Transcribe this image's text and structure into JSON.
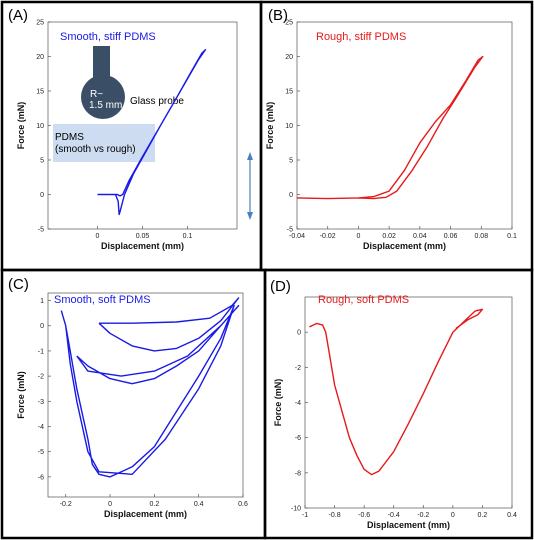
{
  "chart_data": [
    {
      "type": "line",
      "panel_label": "(A)",
      "caption": "Smooth, stiff PDMS",
      "color": "#1a1ae6",
      "xlabel": "Displacement (mm)",
      "ylabel": "Force (mN)",
      "xlim": [
        -0.055,
        0.155
      ],
      "ylim": [
        -5,
        25
      ],
      "xticks": [
        0,
        0.05,
        0.1
      ],
      "xticklabels": [
        "0",
        "0.05",
        "0.1"
      ],
      "yticks": [
        -5,
        0,
        5,
        10,
        15,
        20,
        25
      ],
      "yticklabels": [
        "-5",
        "0",
        "5",
        "10",
        "15",
        "20",
        "25"
      ],
      "series": [
        {
          "x": [
            0,
            0.015,
            0.022,
            0.025,
            0.028,
            0.035,
            0.05,
            0.07,
            0.09,
            0.105,
            0.116,
            0.12,
            0.112,
            0.09,
            0.07,
            0.055,
            0.04,
            0.03,
            0.027,
            0.025,
            0.024,
            0.023,
            0.02,
            0.01,
            0
          ],
          "y": [
            0,
            0,
            0,
            -0.2,
            0,
            2,
            5.5,
            10,
            14.5,
            18,
            20.5,
            21,
            19.5,
            14.5,
            10,
            6.5,
            3,
            0,
            -1.5,
            -2.5,
            -2.9,
            -1,
            0,
            0,
            0
          ]
        }
      ],
      "annotations": {
        "probe_size": "R~\n1.5 mm",
        "probe_label": "Glass probe",
        "substrate_label": "PDMS\n(smooth vs rough)"
      }
    },
    {
      "type": "line",
      "panel_label": "(B)",
      "caption": "Rough, stiff PDMS",
      "color": "#e61a1a",
      "xlabel": "Displacement (mm)",
      "ylabel": "Force (mN)",
      "xlim": [
        -0.04,
        0.1
      ],
      "ylim": [
        -5,
        25
      ],
      "xticks": [
        -0.04,
        -0.02,
        0,
        0.02,
        0.04,
        0.06,
        0.08,
        0.1
      ],
      "xticklabels": [
        "-0.04",
        "-0.02",
        "0",
        "0.02",
        "0.04",
        "0.06",
        "0.08",
        "0.1"
      ],
      "yticks": [
        -5,
        0,
        5,
        10,
        15,
        20,
        25
      ],
      "yticklabels": [
        "-5",
        "0",
        "5",
        "10",
        "15",
        "20",
        "25"
      ],
      "series": [
        {
          "x": [
            -0.04,
            -0.02,
            0,
            0.01,
            0.02,
            0.03,
            0.04,
            0.05,
            0.06,
            0.07,
            0.078,
            0.081,
            0.076,
            0.065,
            0.055,
            0.045,
            0.035,
            0.025,
            0.018,
            0.01,
            0,
            -0.02,
            -0.04
          ],
          "y": [
            -0.5,
            -0.6,
            -0.5,
            -0.3,
            0.5,
            3.5,
            7.5,
            10.5,
            13,
            16.5,
            19.5,
            20,
            18.5,
            14.5,
            11,
            7,
            3.5,
            0.5,
            -0.4,
            -0.6,
            -0.5,
            -0.6,
            -0.5
          ]
        }
      ]
    },
    {
      "type": "line",
      "panel_label": "(C)",
      "caption": "Smooth, soft PDMS",
      "color": "#1a1ae6",
      "xlabel": "Displacement (mm)",
      "ylabel": "Force (mN)",
      "xlim": [
        -0.28,
        0.6
      ],
      "ylim": [
        -6.8,
        1.3
      ],
      "xticks": [
        -0.2,
        0,
        0.2,
        0.4,
        0.6
      ],
      "xticklabels": [
        "-0.2",
        "0",
        "0.2",
        "0.4",
        "0.6"
      ],
      "yticks": [
        -6,
        -5,
        -4,
        -3,
        -2,
        -1,
        0,
        1
      ],
      "yticklabels": [
        "-6",
        "-5",
        "-4",
        "-3",
        "-2",
        "-1",
        "0",
        "1"
      ],
      "series": [
        {
          "x": [
            -0.05,
            0.1,
            0.3,
            0.45,
            0.55,
            0.58,
            0.5,
            0.4,
            0.3,
            0.2,
            0.1,
            0.0,
            -0.05
          ],
          "y": [
            0.1,
            0.1,
            0.15,
            0.3,
            0.8,
            1.1,
            0.2,
            -0.5,
            -0.9,
            -1.0,
            -0.8,
            -0.3,
            0.1
          ]
        },
        {
          "x": [
            -0.15,
            -0.1,
            0.05,
            0.2,
            0.35,
            0.5,
            0.58,
            0.5,
            0.4,
            0.3,
            0.2,
            0.1,
            0.0,
            -0.1,
            -0.15
          ],
          "y": [
            -1.2,
            -1.8,
            -2.0,
            -1.8,
            -1.2,
            0.0,
            0.8,
            0.0,
            -1.0,
            -1.6,
            -2.1,
            -2.3,
            -2.1,
            -1.6,
            -1.2
          ]
        },
        {
          "x": [
            -0.22,
            -0.2,
            -0.18,
            -0.15,
            -0.1,
            -0.05,
            0.1,
            0.25,
            0.4,
            0.5,
            0.56,
            0.5,
            0.4,
            0.3,
            0.2,
            0.1,
            0.0,
            -0.05,
            -0.08,
            -0.1,
            -0.15,
            -0.18,
            -0.2,
            -0.22
          ],
          "y": [
            0.6,
            0.0,
            -1.5,
            -3.0,
            -5.0,
            -5.8,
            -5.9,
            -4.5,
            -2.5,
            -0.8,
            0.8,
            -0.5,
            -2.0,
            -3.4,
            -4.8,
            -5.6,
            -6.0,
            -5.9,
            -5.5,
            -4.5,
            -2.5,
            -1.0,
            0.0,
            0.6
          ]
        }
      ]
    },
    {
      "type": "line",
      "panel_label": "(D)",
      "caption": "Rough, soft PDMS",
      "color": "#e61a1a",
      "xlabel": "Displacement (mm)",
      "ylabel": "Force (mN)",
      "xlim": [
        -1,
        0.4
      ],
      "ylim": [
        -10,
        2
      ],
      "xticks": [
        -1,
        -0.8,
        -0.6,
        -0.4,
        -0.2,
        0,
        0.2,
        0.4
      ],
      "xticklabels": [
        "-1",
        "-0.8",
        "-0.6",
        "-0.4",
        "-0.2",
        "0",
        "0.2",
        "0.4"
      ],
      "yticks": [
        -10,
        -8,
        -6,
        -4,
        -2,
        0
      ],
      "yticklabels": [
        "-10",
        "-8",
        "-6",
        "-4",
        "-2",
        "0"
      ],
      "series": [
        {
          "x": [
            -0.97,
            -0.92,
            -0.88,
            -0.86,
            -0.84,
            -0.8,
            -0.75,
            -0.7,
            -0.65,
            -0.6,
            -0.55,
            -0.5,
            -0.4,
            -0.3,
            -0.2,
            -0.1,
            0,
            0.05,
            0.1,
            0.15,
            0.2,
            0.17,
            0.1,
            0.02
          ],
          "y": [
            0.3,
            0.5,
            0.4,
            0,
            -1,
            -3,
            -4.5,
            -6,
            -7,
            -7.8,
            -8.1,
            -7.9,
            -6.8,
            -5.2,
            -3.5,
            -1.7,
            0,
            0.4,
            0.8,
            1.2,
            1.3,
            1.0,
            0.7,
            0.2
          ]
        }
      ]
    }
  ]
}
